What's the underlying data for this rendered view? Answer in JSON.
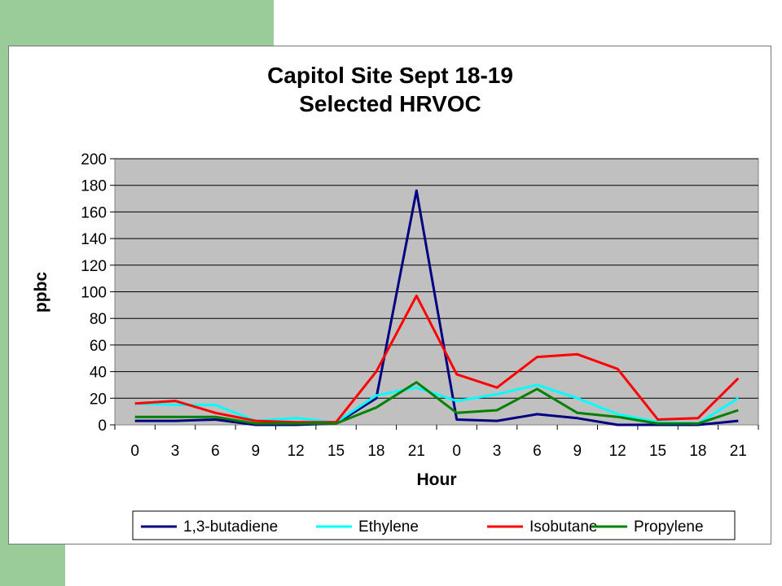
{
  "chart_data": {
    "type": "line",
    "title": [
      "Capitol Site Sept 18-19",
      "Selected HRVOC"
    ],
    "xlabel": "Hour",
    "ylabel": "ppbc",
    "ylim": [
      0,
      200
    ],
    "yticks": [
      "0",
      "20",
      "40",
      "60",
      "80",
      "100",
      "120",
      "140",
      "160",
      "180",
      "200"
    ],
    "categories": [
      "0",
      "3",
      "6",
      "9",
      "12",
      "15",
      "18",
      "21",
      "0",
      "3",
      "6",
      "9",
      "12",
      "15",
      "18",
      "21"
    ],
    "grid": "horizontal",
    "plot_background": "#c0c0c0",
    "legend_position": "bottom",
    "series": [
      {
        "name": "1,3-butadiene",
        "color": "#000080",
        "values": [
          3,
          3,
          4,
          0,
          0,
          1,
          20,
          176,
          4,
          3,
          8,
          5,
          0,
          0,
          0,
          3
        ]
      },
      {
        "name": "Ethylene",
        "color": "#00ffff",
        "values": [
          16,
          15,
          15,
          3,
          5,
          2,
          22,
          28,
          18,
          23,
          30,
          20,
          8,
          2,
          1,
          20
        ]
      },
      {
        "name": "Isobutane",
        "color": "#ff0000",
        "values": [
          16,
          18,
          9,
          3,
          2,
          2,
          40,
          97,
          38,
          28,
          51,
          53,
          42,
          4,
          5,
          35
        ]
      },
      {
        "name": "Propylene",
        "color": "#008000",
        "values": [
          6,
          6,
          6,
          1,
          1,
          1,
          13,
          32,
          9,
          11,
          27,
          9,
          6,
          1,
          1,
          11
        ]
      }
    ]
  }
}
